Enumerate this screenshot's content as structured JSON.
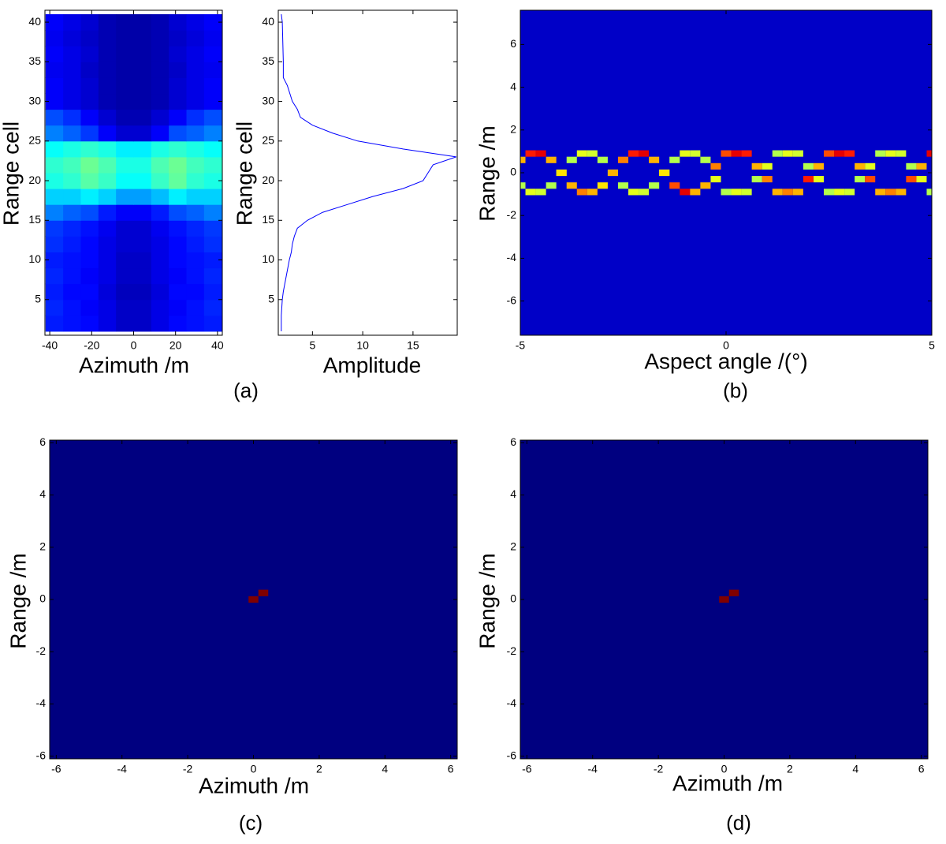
{
  "chart_data": [
    {
      "type": "heatmap",
      "caption": "(a)",
      "x_label": "Azimuth /m",
      "y_label": "Range cell",
      "colormap": "jet",
      "clim": [
        0,
        1
      ],
      "x": [
        -37.8,
        -29.4,
        -21,
        -12.6,
        -4.2,
        4.2,
        12.6,
        21,
        29.4,
        37.8
      ],
      "y": [
        2,
        4,
        6,
        8,
        10,
        12,
        14,
        16,
        18,
        20,
        22,
        24,
        26,
        28,
        30,
        32,
        34,
        36,
        38,
        40
      ],
      "z": [
        [
          0.15,
          0.14,
          0.13,
          0.1,
          0.07,
          0.07,
          0.1,
          0.13,
          0.14,
          0.15
        ],
        [
          0.16,
          0.14,
          0.12,
          0.1,
          0.07,
          0.07,
          0.1,
          0.12,
          0.14,
          0.16
        ],
        [
          0.15,
          0.13,
          0.13,
          0.09,
          0.06,
          0.06,
          0.09,
          0.13,
          0.13,
          0.15
        ],
        [
          0.16,
          0.14,
          0.12,
          0.1,
          0.07,
          0.07,
          0.1,
          0.12,
          0.14,
          0.16
        ],
        [
          0.15,
          0.14,
          0.13,
          0.1,
          0.07,
          0.07,
          0.1,
          0.13,
          0.14,
          0.15
        ],
        [
          0.17,
          0.15,
          0.13,
          0.1,
          0.08,
          0.08,
          0.1,
          0.13,
          0.15,
          0.17
        ],
        [
          0.18,
          0.16,
          0.14,
          0.11,
          0.08,
          0.08,
          0.11,
          0.14,
          0.16,
          0.18
        ],
        [
          0.25,
          0.22,
          0.2,
          0.15,
          0.12,
          0.12,
          0.15,
          0.2,
          0.22,
          0.25
        ],
        [
          0.33,
          0.33,
          0.36,
          0.33,
          0.28,
          0.28,
          0.31,
          0.36,
          0.33,
          0.33
        ],
        [
          0.4,
          0.42,
          0.46,
          0.43,
          0.38,
          0.38,
          0.43,
          0.47,
          0.42,
          0.4
        ],
        [
          0.42,
          0.44,
          0.48,
          0.45,
          0.4,
          0.4,
          0.45,
          0.48,
          0.44,
          0.42
        ],
        [
          0.38,
          0.4,
          0.42,
          0.4,
          0.36,
          0.36,
          0.4,
          0.42,
          0.4,
          0.38
        ],
        [
          0.25,
          0.22,
          0.18,
          0.12,
          0.08,
          0.08,
          0.12,
          0.2,
          0.22,
          0.25
        ],
        [
          0.2,
          0.17,
          0.12,
          0.08,
          0.05,
          0.05,
          0.08,
          0.12,
          0.17,
          0.2
        ],
        [
          0.12,
          0.1,
          0.08,
          0.05,
          0.04,
          0.04,
          0.05,
          0.08,
          0.1,
          0.12
        ],
        [
          0.12,
          0.1,
          0.08,
          0.05,
          0.04,
          0.04,
          0.05,
          0.08,
          0.1,
          0.12
        ],
        [
          0.11,
          0.1,
          0.07,
          0.05,
          0.04,
          0.04,
          0.05,
          0.07,
          0.1,
          0.11
        ],
        [
          0.12,
          0.1,
          0.08,
          0.05,
          0.04,
          0.04,
          0.05,
          0.08,
          0.1,
          0.12
        ],
        [
          0.11,
          0.09,
          0.07,
          0.05,
          0.04,
          0.04,
          0.05,
          0.07,
          0.09,
          0.11
        ],
        [
          0.12,
          0.1,
          0.08,
          0.05,
          0.04,
          0.04,
          0.05,
          0.08,
          0.1,
          0.12
        ]
      ],
      "xlim": [
        -42.3,
        42.3
      ],
      "xticks": [
        -40,
        -20,
        0,
        20,
        40
      ],
      "ylim": [
        0.5,
        41.5
      ],
      "yticks": [
        5,
        10,
        15,
        20,
        25,
        30,
        35,
        40
      ]
    },
    {
      "type": "line",
      "orientation": "horizontal",
      "x_label": "Amplitude",
      "y_label": "Range cell",
      "color": "#0000ff",
      "y": [
        1,
        3,
        5,
        6,
        8,
        10,
        11,
        12,
        13,
        14,
        15,
        16,
        17,
        18,
        19,
        20,
        21,
        22,
        23,
        24,
        25,
        26,
        27,
        28,
        29,
        30,
        32,
        33,
        35,
        40,
        41
      ],
      "values": [
        1.9,
        1.9,
        2.0,
        2.1,
        2.4,
        2.7,
        2.9,
        3.0,
        3.2,
        3.5,
        4.5,
        6.0,
        8.5,
        11.0,
        14.0,
        16.0,
        16.5,
        17.0,
        19.3,
        14.0,
        9.5,
        7.0,
        5.0,
        3.8,
        3.5,
        3.0,
        2.5,
        2.1,
        2.1,
        2.0,
        1.9
      ],
      "xlim": [
        1.6,
        19.4
      ],
      "xticks": [
        5,
        10,
        15
      ],
      "ylim": [
        0.5,
        41.5
      ],
      "yticks": [
        5,
        10,
        15,
        20,
        25,
        30,
        35,
        40
      ]
    },
    {
      "type": "heatmap",
      "caption": "(b)",
      "x_label": "Aspect angle /(°)",
      "y_label": "Range /m",
      "colormap": "jet",
      "clim": [
        0,
        1
      ],
      "background": 0.07,
      "x": [
        -5,
        -4.75,
        -4.5,
        -4.25,
        -4,
        -3.75,
        -3.5,
        -3.25,
        -3,
        -2.75,
        -2.5,
        -2.25,
        -2,
        -1.75,
        -1.5,
        -1.25,
        -1,
        -0.75,
        -0.5,
        -0.25,
        0,
        0.25,
        0.5,
        0.75,
        1,
        1.25,
        1.5,
        1.75,
        2,
        2.25,
        2.5,
        2.75,
        3,
        3.25,
        3.5,
        3.75,
        4,
        4.25,
        4.5,
        4.75,
        5
      ],
      "series": [
        {
          "values": [
            -0.6,
            -0.9,
            -0.9,
            -0.6,
            0,
            0.6,
            0.9,
            0.9,
            0.6,
            0,
            -0.6,
            -0.9,
            -0.9,
            -0.6,
            0,
            0.6,
            0.9,
            0.9,
            0.6,
            -0.3,
            -0.9,
            -0.9,
            -0.9,
            -0.3,
            0.3,
            0.9,
            0.9,
            0.9,
            0.3,
            -0.3,
            -0.9,
            -0.9,
            -0.9,
            -0.3,
            0.3,
            0.9,
            0.9,
            0.9,
            0.3,
            -0.3,
            -0.9
          ],
          "z": [
            0.55,
            0.6,
            0.58,
            0.55,
            0.6,
            0.55,
            0.6,
            0.58,
            0.55,
            0.6,
            0.55,
            0.6,
            0.58,
            0.55,
            0.6,
            0.55,
            0.6,
            0.58,
            0.55,
            0.6,
            0.55,
            0.6,
            0.58,
            0.55,
            0.6,
            0.55,
            0.6,
            0.58,
            0.55,
            0.6,
            0.55,
            0.6,
            0.58,
            0.55,
            0.6,
            0.55,
            0.6,
            0.58,
            0.55,
            0.6,
            0.55
          ]
        },
        {
          "values": [
            0.6,
            0.9,
            0.9,
            0.6,
            0,
            -0.6,
            -0.9,
            -0.9,
            -0.6,
            0,
            0.6,
            0.9,
            0.9,
            0.6,
            0,
            -0.6,
            -0.9,
            -0.9,
            -0.6,
            0.3,
            0.9,
            0.9,
            0.9,
            0.3,
            -0.3,
            -0.9,
            -0.9,
            -0.9,
            -0.3,
            0.3,
            0.9,
            0.9,
            0.9,
            0.3,
            -0.3,
            -0.9,
            -0.9,
            -0.9,
            -0.3,
            0.3,
            0.9
          ],
          "z": [
            0.7,
            0.85,
            0.9,
            0.7,
            0.65,
            0.7,
            0.75,
            0.7,
            0.65,
            0.7,
            0.75,
            0.85,
            0.9,
            0.7,
            0.65,
            0.8,
            0.9,
            0.7,
            0.7,
            0.75,
            0.8,
            0.9,
            0.85,
            0.7,
            0.75,
            0.7,
            0.75,
            0.7,
            0.85,
            0.7,
            0.8,
            0.9,
            0.85,
            0.7,
            0.8,
            0.7,
            0.75,
            0.7,
            0.8,
            0.7,
            0.9
          ]
        }
      ],
      "xlim": [
        -5,
        5
      ],
      "xticks": [
        -5,
        0,
        5
      ],
      "ylim": [
        -7.6,
        7.6
      ],
      "yticks": [
        -6,
        -4,
        -2,
        0,
        2,
        4,
        6
      ]
    },
    {
      "type": "heatmap",
      "caption": "(c)",
      "x_label": "Azimuth /m",
      "y_label": "Range /m",
      "colormap": "jet",
      "clim": [
        0,
        1
      ],
      "background": 0,
      "x": [
        0,
        0.3
      ],
      "series": [
        {
          "values": [
            0,
            0.25
          ],
          "z": [
            1,
            1
          ]
        }
      ],
      "xlim": [
        -6.2,
        6.2
      ],
      "xticks": [
        -6,
        -4,
        -2,
        0,
        2,
        4,
        6
      ],
      "ylim": [
        -6.1,
        6.1
      ],
      "yticks": [
        -6,
        -4,
        -2,
        0,
        2,
        4,
        6
      ]
    },
    {
      "type": "heatmap",
      "caption": "(d)",
      "x_label": "Azimuth /m",
      "y_label": "Range /m",
      "colormap": "jet",
      "clim": [
        0,
        1
      ],
      "background": 0,
      "x": [
        0,
        0.3
      ],
      "series": [
        {
          "values": [
            0,
            0.25
          ],
          "z": [
            1,
            1
          ]
        }
      ],
      "xlim": [
        -6.2,
        6.2
      ],
      "xticks": [
        -6,
        -4,
        -2,
        0,
        2,
        4,
        6
      ],
      "ylim": [
        -6.1,
        6.1
      ],
      "yticks": [
        -6,
        -4,
        -2,
        0,
        2,
        4,
        6
      ]
    }
  ]
}
